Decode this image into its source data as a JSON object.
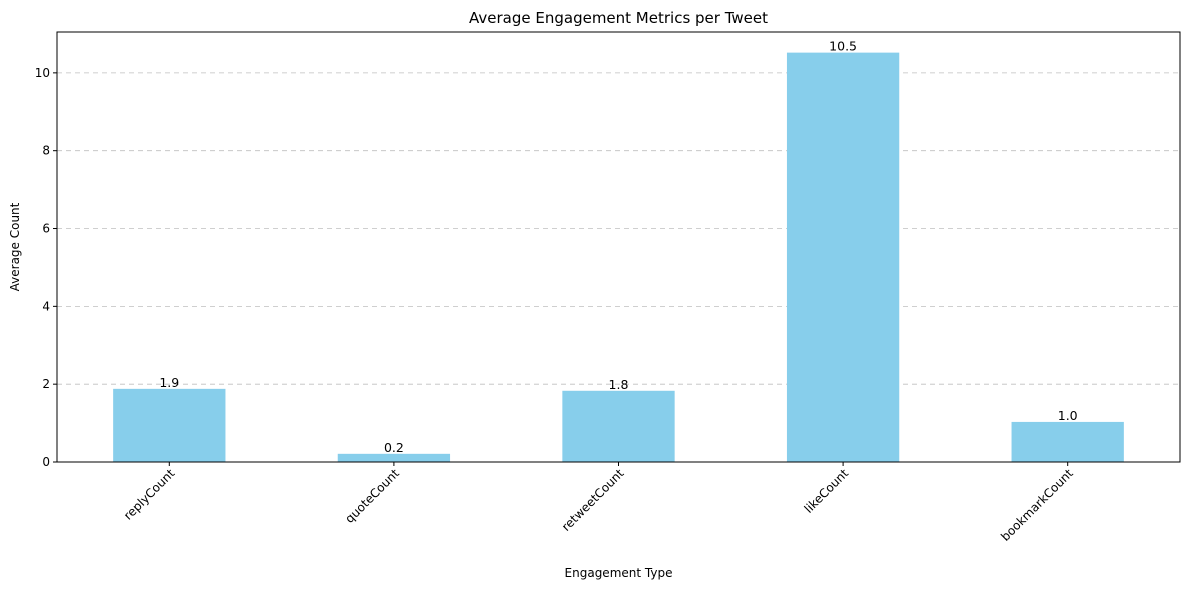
{
  "chart_data": {
    "type": "bar",
    "title": "Average Engagement Metrics per Tweet",
    "xlabel": "Engagement Type",
    "ylabel": "Average Count",
    "categories": [
      "replyCount",
      "quoteCount",
      "retweetCount",
      "likeCount",
      "bookmarkCount"
    ],
    "values": [
      1.88,
      0.21,
      1.83,
      10.52,
      1.03
    ],
    "data_labels": [
      "1.9",
      "0.2",
      "1.8",
      "10.5",
      "1.0"
    ],
    "ylim": [
      0,
      11.05
    ],
    "yticks": [
      0,
      2,
      4,
      6,
      8,
      10
    ],
    "ytick_labels": [
      "0",
      "2",
      "4",
      "6",
      "8",
      "10"
    ],
    "bar_color": "#87ceeb",
    "grid": "y-dashed",
    "xtick_rotation_deg": 45
  }
}
